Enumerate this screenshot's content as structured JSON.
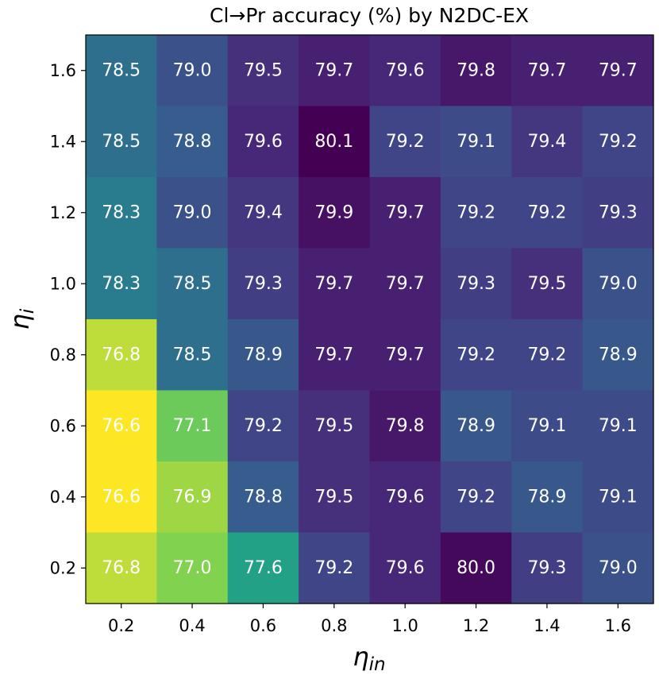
{
  "chart_data": {
    "type": "heatmap",
    "title": "Cl→Pr accuracy (%) by N2DC-EX",
    "xlabel": "η",
    "xlabel_subscript": "in",
    "ylabel": "η",
    "ylabel_subscript": "i",
    "x_ticks": [
      "0.2",
      "0.4",
      "0.6",
      "0.8",
      "1.0",
      "1.2",
      "1.4",
      "1.6"
    ],
    "y_ticks": [
      "1.6",
      "1.4",
      "1.2",
      "1.0",
      "0.8",
      "0.6",
      "0.4",
      "0.2"
    ],
    "values": [
      [
        78.5,
        79.0,
        79.5,
        79.7,
        79.6,
        79.8,
        79.7,
        79.7
      ],
      [
        78.5,
        78.8,
        79.6,
        80.1,
        79.2,
        79.1,
        79.4,
        79.2
      ],
      [
        78.3,
        79.0,
        79.4,
        79.9,
        79.7,
        79.2,
        79.2,
        79.3
      ],
      [
        78.3,
        78.5,
        79.3,
        79.7,
        79.7,
        79.3,
        79.5,
        79.0
      ],
      [
        76.8,
        78.5,
        78.9,
        79.7,
        79.7,
        79.2,
        79.2,
        78.9
      ],
      [
        76.6,
        77.1,
        79.2,
        79.5,
        79.8,
        78.9,
        79.1,
        79.1
      ],
      [
        76.6,
        76.9,
        78.8,
        79.5,
        79.6,
        79.2,
        78.9,
        79.1
      ],
      [
        76.8,
        77.0,
        77.6,
        79.2,
        79.6,
        80.0,
        79.3,
        79.0
      ]
    ],
    "colormap": "viridis_r",
    "vmin": 76.6,
    "vmax": 80.1,
    "grid": false,
    "legend": "none"
  }
}
